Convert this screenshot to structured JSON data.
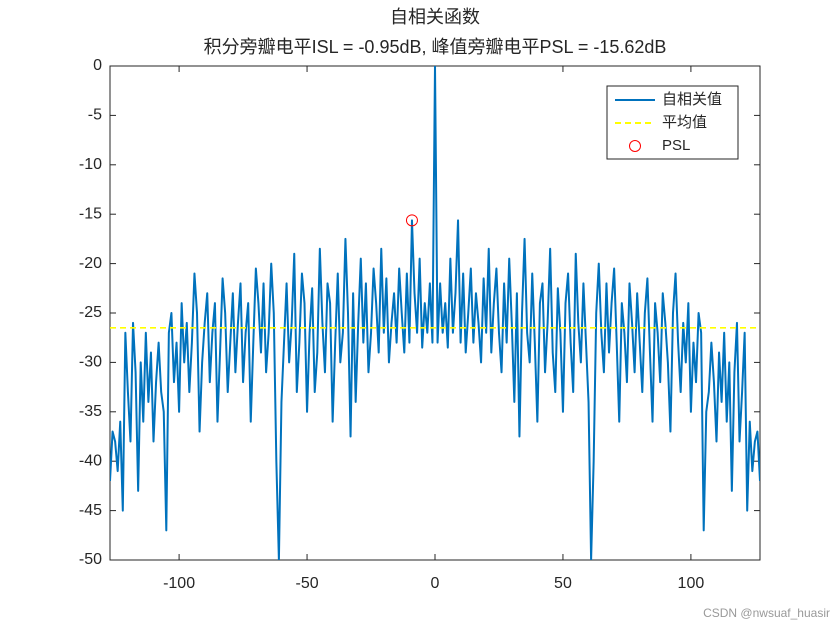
{
  "chart_data": {
    "type": "line",
    "title": "自相关函数",
    "subtitle": "积分旁瓣电平ISL = -0.95dB, 峰值旁瓣电平PSL = -15.62dB",
    "watermark": "CSDN @nwsuaf_huasir",
    "xlim": [
      -127,
      127
    ],
    "xticks": [
      -100,
      -50,
      0,
      50,
      100
    ],
    "ylim": [
      -50,
      0
    ],
    "yticks": [
      -50,
      -45,
      -40,
      -35,
      -30,
      -25,
      -20,
      -15,
      -10,
      -5,
      0
    ],
    "legend": "northeast",
    "series": [
      {
        "name": "自相关值",
        "color": "#0072bd",
        "line_style": "solid",
        "marker": "none",
        "x": [
          -127,
          -126,
          -125,
          -124,
          -123,
          -122,
          -121,
          -120,
          -119,
          -118,
          -117,
          -116,
          -115,
          -114,
          -113,
          -112,
          -111,
          -110,
          -109,
          -108,
          -107,
          -106,
          -105,
          -104,
          -103,
          -102,
          -101,
          -100,
          -99,
          -98,
          -97,
          -96,
          -95,
          -94,
          -93,
          -92,
          -91,
          -90,
          -89,
          -88,
          -87,
          -86,
          -85,
          -84,
          -83,
          -82,
          -81,
          -80,
          -79,
          -78,
          -77,
          -76,
          -75,
          -74,
          -73,
          -72,
          -71,
          -70,
          -69,
          -68,
          -67,
          -66,
          -65,
          -64,
          -63,
          -62,
          -61,
          -60,
          -59,
          -58,
          -57,
          -56,
          -55,
          -54,
          -53,
          -52,
          -51,
          -50,
          -49,
          -48,
          -47,
          -46,
          -45,
          -44,
          -43,
          -42,
          -41,
          -40,
          -39,
          -38,
          -37,
          -36,
          -35,
          -34,
          -33,
          -32,
          -31,
          -30,
          -29,
          -28,
          -27,
          -26,
          -25,
          -24,
          -23,
          -22,
          -21,
          -20,
          -19,
          -18,
          -17,
          -16,
          -15,
          -14,
          -13,
          -12,
          -11,
          -10,
          -9,
          -8,
          -7,
          -6,
          -5,
          -4,
          -3,
          -2,
          -1,
          0,
          1,
          2,
          3,
          4,
          5,
          6,
          7,
          8,
          9,
          10,
          11,
          12,
          13,
          14,
          15,
          16,
          17,
          18,
          19,
          20,
          21,
          22,
          23,
          24,
          25,
          26,
          27,
          28,
          29,
          30,
          31,
          32,
          33,
          34,
          35,
          36,
          37,
          38,
          39,
          40,
          41,
          42,
          43,
          44,
          45,
          46,
          47,
          48,
          49,
          50,
          51,
          52,
          53,
          54,
          55,
          56,
          57,
          58,
          59,
          60,
          61,
          62,
          63,
          64,
          65,
          66,
          67,
          68,
          69,
          70,
          71,
          72,
          73,
          74,
          75,
          76,
          77,
          78,
          79,
          80,
          81,
          82,
          83,
          84,
          85,
          86,
          87,
          88,
          89,
          90,
          91,
          92,
          93,
          94,
          95,
          96,
          97,
          98,
          99,
          100,
          101,
          102,
          103,
          104,
          105,
          106,
          107,
          108,
          109,
          110,
          111,
          112,
          113,
          114,
          115,
          116,
          117,
          118,
          119,
          120,
          121,
          122,
          123,
          124,
          125,
          126,
          127
        ],
        "values": [
          -42,
          -37,
          -38,
          -41,
          -36,
          -45,
          -27,
          -33,
          -38,
          -26,
          -31,
          -43,
          -30,
          -36,
          -27,
          -34,
          -29,
          -38,
          -32,
          -28,
          -33,
          -35,
          -47,
          -27,
          -25,
          -32,
          -28,
          -35,
          -24,
          -30,
          -26,
          -33,
          -28,
          -21,
          -25,
          -37,
          -30,
          -26,
          -23,
          -32,
          -27,
          -24,
          -36,
          -29,
          -21.5,
          -25,
          -33,
          -28,
          -23,
          -31,
          -26,
          -22,
          -32,
          -27,
          -24,
          -36,
          -28,
          -20.5,
          -24,
          -29,
          -22,
          -31,
          -27,
          -20,
          -25,
          -40,
          -50,
          -34,
          -28,
          -22,
          -30,
          -26,
          -19,
          -33,
          -28,
          -21,
          -24,
          -35,
          -27,
          -22.5,
          -33,
          -29,
          -18.5,
          -26,
          -31,
          -22,
          -24,
          -36,
          -28,
          -21,
          -30,
          -27,
          -17.5,
          -25,
          -37.5,
          -23,
          -34,
          -26,
          -19.5,
          -28,
          -22,
          -31,
          -27,
          -20.5,
          -24,
          -29,
          -18.5,
          -27,
          -21.5,
          -30,
          -26,
          -23,
          -28,
          -20.5,
          -25,
          -29,
          -21,
          -28,
          -15.62,
          -23,
          -27,
          -19.5,
          -28.5,
          -24,
          -27,
          -22,
          -28,
          0,
          -28,
          -22,
          -27,
          -24,
          -28.5,
          -19.5,
          -27,
          -23,
          -15.62,
          -28,
          -21,
          -29,
          -25,
          -20.5,
          -28,
          -23,
          -26,
          -30,
          -21.5,
          -27,
          -18.5,
          -29,
          -24,
          -20.5,
          -27,
          -31,
          -22,
          -28,
          -19.5,
          -26,
          -34,
          -23,
          -37.5,
          -25,
          -17.5,
          -27,
          -30,
          -21,
          -28,
          -36,
          -24,
          -22,
          -31,
          -26,
          -18.5,
          -29,
          -33,
          -22.5,
          -27,
          -35,
          -24,
          -21,
          -28,
          -33,
          -19,
          -26,
          -30,
          -22,
          -28,
          -34,
          -50,
          -40,
          -25,
          -20,
          -27,
          -31,
          -22,
          -29,
          -24,
          -20.5,
          -28,
          -36,
          -24,
          -27,
          -32,
          -22,
          -26,
          -31,
          -23,
          -28,
          -33,
          -25,
          -21.5,
          -29,
          -36,
          -24,
          -27,
          -32,
          -23,
          -26,
          -30,
          -37,
          -25,
          -21,
          -28,
          -33,
          -26,
          -30,
          -24,
          -35,
          -28,
          -32,
          -25,
          -27,
          -47,
          -35,
          -33,
          -28,
          -32,
          -38,
          -29,
          -34,
          -27,
          -36,
          -30,
          -43,
          -31,
          -26,
          -38,
          -33,
          -27,
          -45,
          -36,
          -41,
          -38,
          -37,
          -42
        ]
      },
      {
        "name": "平均值",
        "color": "#ffff00",
        "line_style": "dashed",
        "marker": "none",
        "x": [
          -127,
          127
        ],
        "values": [
          -26.5,
          -26.5
        ]
      },
      {
        "name": "PSL",
        "color": "#ff0000",
        "line_style": "none",
        "marker": "o",
        "x": [
          -9
        ],
        "values": [
          -15.62
        ]
      }
    ]
  }
}
